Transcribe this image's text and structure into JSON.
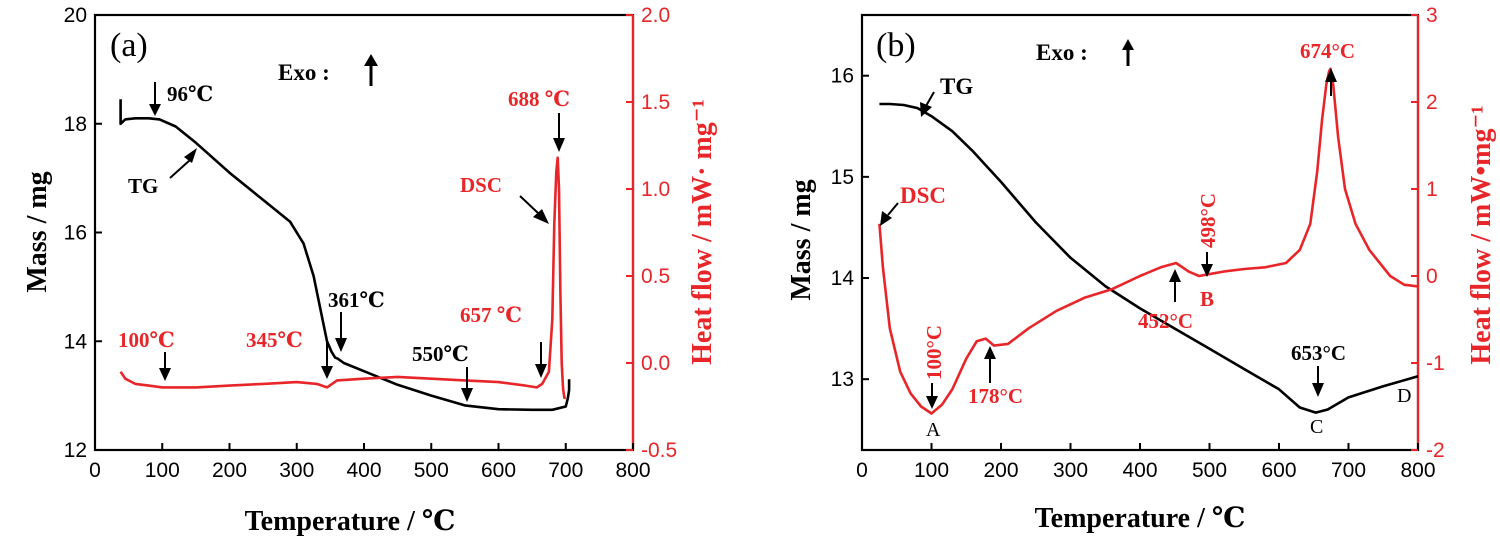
{
  "chart_data": [
    {
      "type": "line",
      "panel_label": "(a)",
      "xlabel": "Temperature / ℃",
      "ylabel": "Mass / mg",
      "y2label": "Heat flow / mW· mg⁻¹",
      "xlim": [
        0,
        800
      ],
      "ylim": [
        12,
        20
      ],
      "y2lim": [
        -0.5,
        2.0
      ],
      "xticks": [
        "0",
        "100",
        "200",
        "300",
        "400",
        "500",
        "600",
        "700",
        "800"
      ],
      "yticks": [
        "12",
        "14",
        "16",
        "18",
        "20"
      ],
      "y2ticks": [
        "-0.5",
        "0.0",
        "0.5",
        "1.0",
        "1.5",
        "2.0"
      ],
      "exo_label": "Exo :",
      "series": [
        {
          "name": "TG",
          "axis": "left",
          "color": "#000000",
          "x": [
            38,
            38,
            45,
            60,
            80,
            96,
            120,
            150,
            200,
            250,
            290,
            310,
            325,
            335,
            345,
            352,
            357,
            361,
            370,
            400,
            450,
            500,
            550,
            600,
            650,
            680,
            700,
            703,
            705,
            705
          ],
          "y": [
            18.45,
            18.0,
            18.08,
            18.1,
            18.1,
            18.08,
            17.95,
            17.65,
            17.1,
            16.6,
            16.2,
            15.8,
            15.2,
            14.6,
            14.0,
            13.8,
            13.7,
            13.68,
            13.6,
            13.45,
            13.2,
            13.0,
            12.82,
            12.75,
            12.74,
            12.74,
            12.8,
            12.95,
            13.1,
            13.3
          ]
        },
        {
          "name": "DSC",
          "axis": "right",
          "color": "#e8262a",
          "x": [
            38,
            45,
            60,
            80,
            100,
            150,
            200,
            250,
            300,
            330,
            345,
            360,
            400,
            450,
            500,
            550,
            600,
            640,
            657,
            665,
            675,
            680,
            683,
            686,
            688,
            690,
            692,
            694,
            696,
            698,
            700
          ],
          "y": [
            -0.05,
            -0.09,
            -0.12,
            -0.13,
            -0.14,
            -0.14,
            -0.13,
            -0.12,
            -0.11,
            -0.12,
            -0.14,
            -0.1,
            -0.09,
            -0.08,
            -0.09,
            -0.1,
            -0.11,
            -0.13,
            -0.14,
            -0.12,
            -0.05,
            0.25,
            0.8,
            1.1,
            1.18,
            1.0,
            0.4,
            0.0,
            -0.15,
            -0.2,
            -0.2
          ]
        }
      ],
      "annotations": [
        {
          "text": "96℃",
          "color": "#000000"
        },
        {
          "text": "TG",
          "color": "#000000"
        },
        {
          "text": "361℃",
          "color": "#000000"
        },
        {
          "text": "550℃",
          "color": "#000000"
        },
        {
          "text": "100℃",
          "color": "#e8262a"
        },
        {
          "text": "345℃",
          "color": "#e8262a"
        },
        {
          "text": "657 ℃",
          "color": "#e8262a"
        },
        {
          "text": "688 ℃",
          "color": "#e8262a"
        },
        {
          "text": "DSC",
          "color": "#e8262a"
        }
      ]
    },
    {
      "type": "line",
      "panel_label": "(b)",
      "xlabel": "Temperature / ℃",
      "ylabel": "Mass / mg",
      "y2label": "Heat flow / mW•mg⁻¹",
      "xlim": [
        0,
        800
      ],
      "ylim": [
        12.3,
        16.6
      ],
      "y2lim": [
        -2,
        3
      ],
      "xticks": [
        "0",
        "100",
        "200",
        "300",
        "400",
        "500",
        "600",
        "700",
        "800"
      ],
      "yticks": [
        "13",
        "14",
        "15",
        "16"
      ],
      "y2ticks": [
        "-2",
        "-1",
        "0",
        "1",
        "2",
        "3"
      ],
      "exo_label": "Exo :",
      "series": [
        {
          "name": "TG",
          "axis": "left",
          "color": "#000000",
          "x": [
            25,
            40,
            60,
            80,
            100,
            130,
            160,
            200,
            250,
            300,
            350,
            400,
            450,
            500,
            550,
            600,
            630,
            653,
            670,
            700,
            750,
            800
          ],
          "y": [
            15.72,
            15.72,
            15.71,
            15.68,
            15.6,
            15.45,
            15.25,
            14.95,
            14.55,
            14.2,
            13.92,
            13.7,
            13.5,
            13.3,
            13.1,
            12.9,
            12.72,
            12.67,
            12.7,
            12.82,
            12.93,
            13.03
          ]
        },
        {
          "name": "DSC",
          "axis": "right",
          "color": "#e8262a",
          "x": [
            25,
            30,
            40,
            55,
            70,
            85,
            100,
            115,
            130,
            150,
            165,
            178,
            190,
            210,
            240,
            280,
            320,
            360,
            400,
            430,
            452,
            470,
            485,
            498,
            520,
            550,
            580,
            610,
            630,
            645,
            655,
            662,
            668,
            672,
            674,
            678,
            685,
            695,
            710,
            730,
            760,
            780,
            800
          ],
          "y": [
            0.6,
            0.1,
            -0.6,
            -1.1,
            -1.35,
            -1.5,
            -1.58,
            -1.48,
            -1.3,
            -0.95,
            -0.75,
            -0.72,
            -0.8,
            -0.78,
            -0.6,
            -0.4,
            -0.25,
            -0.15,
            0.0,
            0.1,
            0.15,
            0.05,
            0.0,
            0.02,
            0.05,
            0.08,
            0.1,
            0.15,
            0.3,
            0.6,
            1.2,
            1.8,
            2.2,
            2.35,
            2.38,
            2.2,
            1.6,
            1.0,
            0.6,
            0.3,
            0.0,
            -0.1,
            -0.12
          ]
        }
      ],
      "annotations": [
        {
          "text": "TG",
          "color": "#000000"
        },
        {
          "text": "DSC",
          "color": "#e8262a"
        },
        {
          "text": "100°C",
          "color": "#e8262a"
        },
        {
          "text": "178°C",
          "color": "#e8262a"
        },
        {
          "text": "452°C",
          "color": "#e8262a"
        },
        {
          "text": "498°C",
          "color": "#e8262a"
        },
        {
          "text": "674°C",
          "color": "#e8262a"
        },
        {
          "text": "653°C",
          "color": "#000000"
        },
        {
          "text": "A",
          "color": "#000000"
        },
        {
          "text": "B",
          "color": "#e8262a"
        },
        {
          "text": "C",
          "color": "#000000"
        },
        {
          "text": "D",
          "color": "#000000"
        }
      ]
    }
  ]
}
